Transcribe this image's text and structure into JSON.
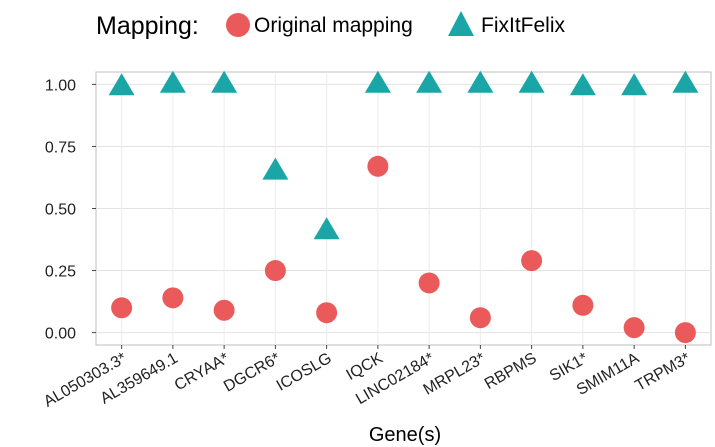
{
  "legend": {
    "title": "Mapping:",
    "items": [
      {
        "label": "Original mapping",
        "shape": "circle",
        "color": "#EB5A5A"
      },
      {
        "label": "FixItFelix",
        "shape": "triangle",
        "color": "#1AA6A6"
      }
    ]
  },
  "chart_data": {
    "type": "scatter",
    "xlabel": "Gene(s)",
    "ylabel": "",
    "ylim": [
      -0.05,
      1.05
    ],
    "yticks": [
      0.0,
      0.25,
      0.5,
      0.75,
      1.0
    ],
    "ytick_labels": [
      "0.00",
      "0.25",
      "0.50",
      "0.75",
      "1.00"
    ],
    "grid": true,
    "legend_position": "top",
    "categories": [
      "AL050303.3*",
      "AL359649.1",
      "CRYAA*",
      "DGCR6*",
      "ICOSLG",
      "IQCK",
      "LINC02184*",
      "MRPL23*",
      "RBPMS",
      "SIK1*",
      "SMIM11A",
      "TRPM3*"
    ],
    "series": [
      {
        "name": "Original mapping",
        "marker": "circle",
        "color": "#EB5A5A",
        "values": [
          0.1,
          0.14,
          0.09,
          0.25,
          0.08,
          0.67,
          0.2,
          0.06,
          0.29,
          0.11,
          0.02,
          0.0
        ]
      },
      {
        "name": "FixItFelix",
        "marker": "triangle",
        "color": "#1AA6A6",
        "values": [
          0.99,
          1.0,
          1.0,
          0.65,
          0.41,
          1.0,
          1.0,
          1.0,
          1.0,
          0.99,
          0.99,
          1.0
        ]
      }
    ]
  }
}
